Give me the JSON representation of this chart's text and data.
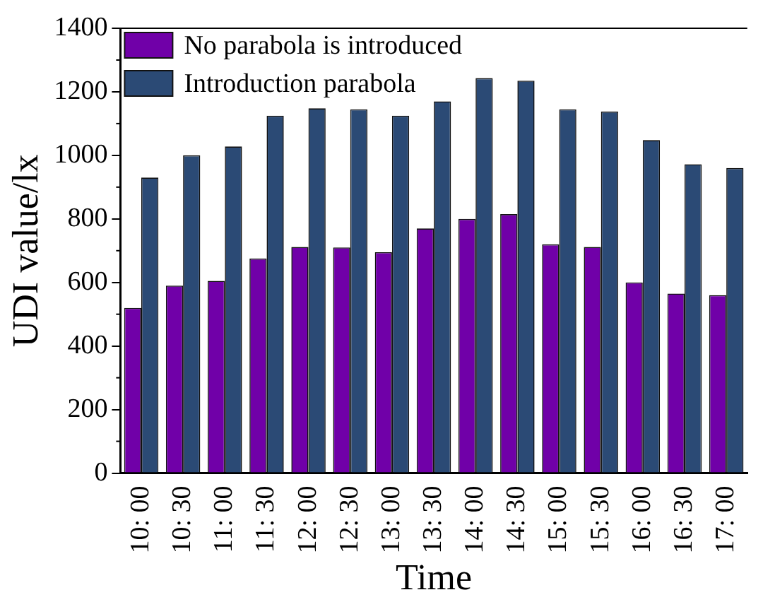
{
  "chart_data": {
    "type": "bar",
    "xlabel": "Time",
    "ylabel": "UDI value/lx",
    "categories": [
      "10: 00",
      "10: 30",
      "11: 00",
      "11: 30",
      "12: 00",
      "12: 30",
      "13: 00",
      "13: 30",
      "14: 00",
      "14: 30",
      "15: 00",
      "15: 30",
      "16: 00",
      "16: 30",
      "17: 00"
    ],
    "series": [
      {
        "name": "No parabola is introduced",
        "color": "#7000a8",
        "values": [
          520,
          590,
          605,
          675,
          712,
          710,
          695,
          770,
          800,
          815,
          720,
          712,
          600,
          565,
          560
        ]
      },
      {
        "name": "Introduction parabola",
        "color": "#2b4a75",
        "values": [
          930,
          1000,
          1028,
          1125,
          1148,
          1145,
          1125,
          1170,
          1243,
          1235,
          1145,
          1138,
          1048,
          972,
          960
        ]
      }
    ],
    "ylim": [
      0,
      1400
    ],
    "yticks": [
      0,
      200,
      400,
      600,
      800,
      1000,
      1200,
      1400
    ],
    "grid": false,
    "legend": "top left"
  }
}
